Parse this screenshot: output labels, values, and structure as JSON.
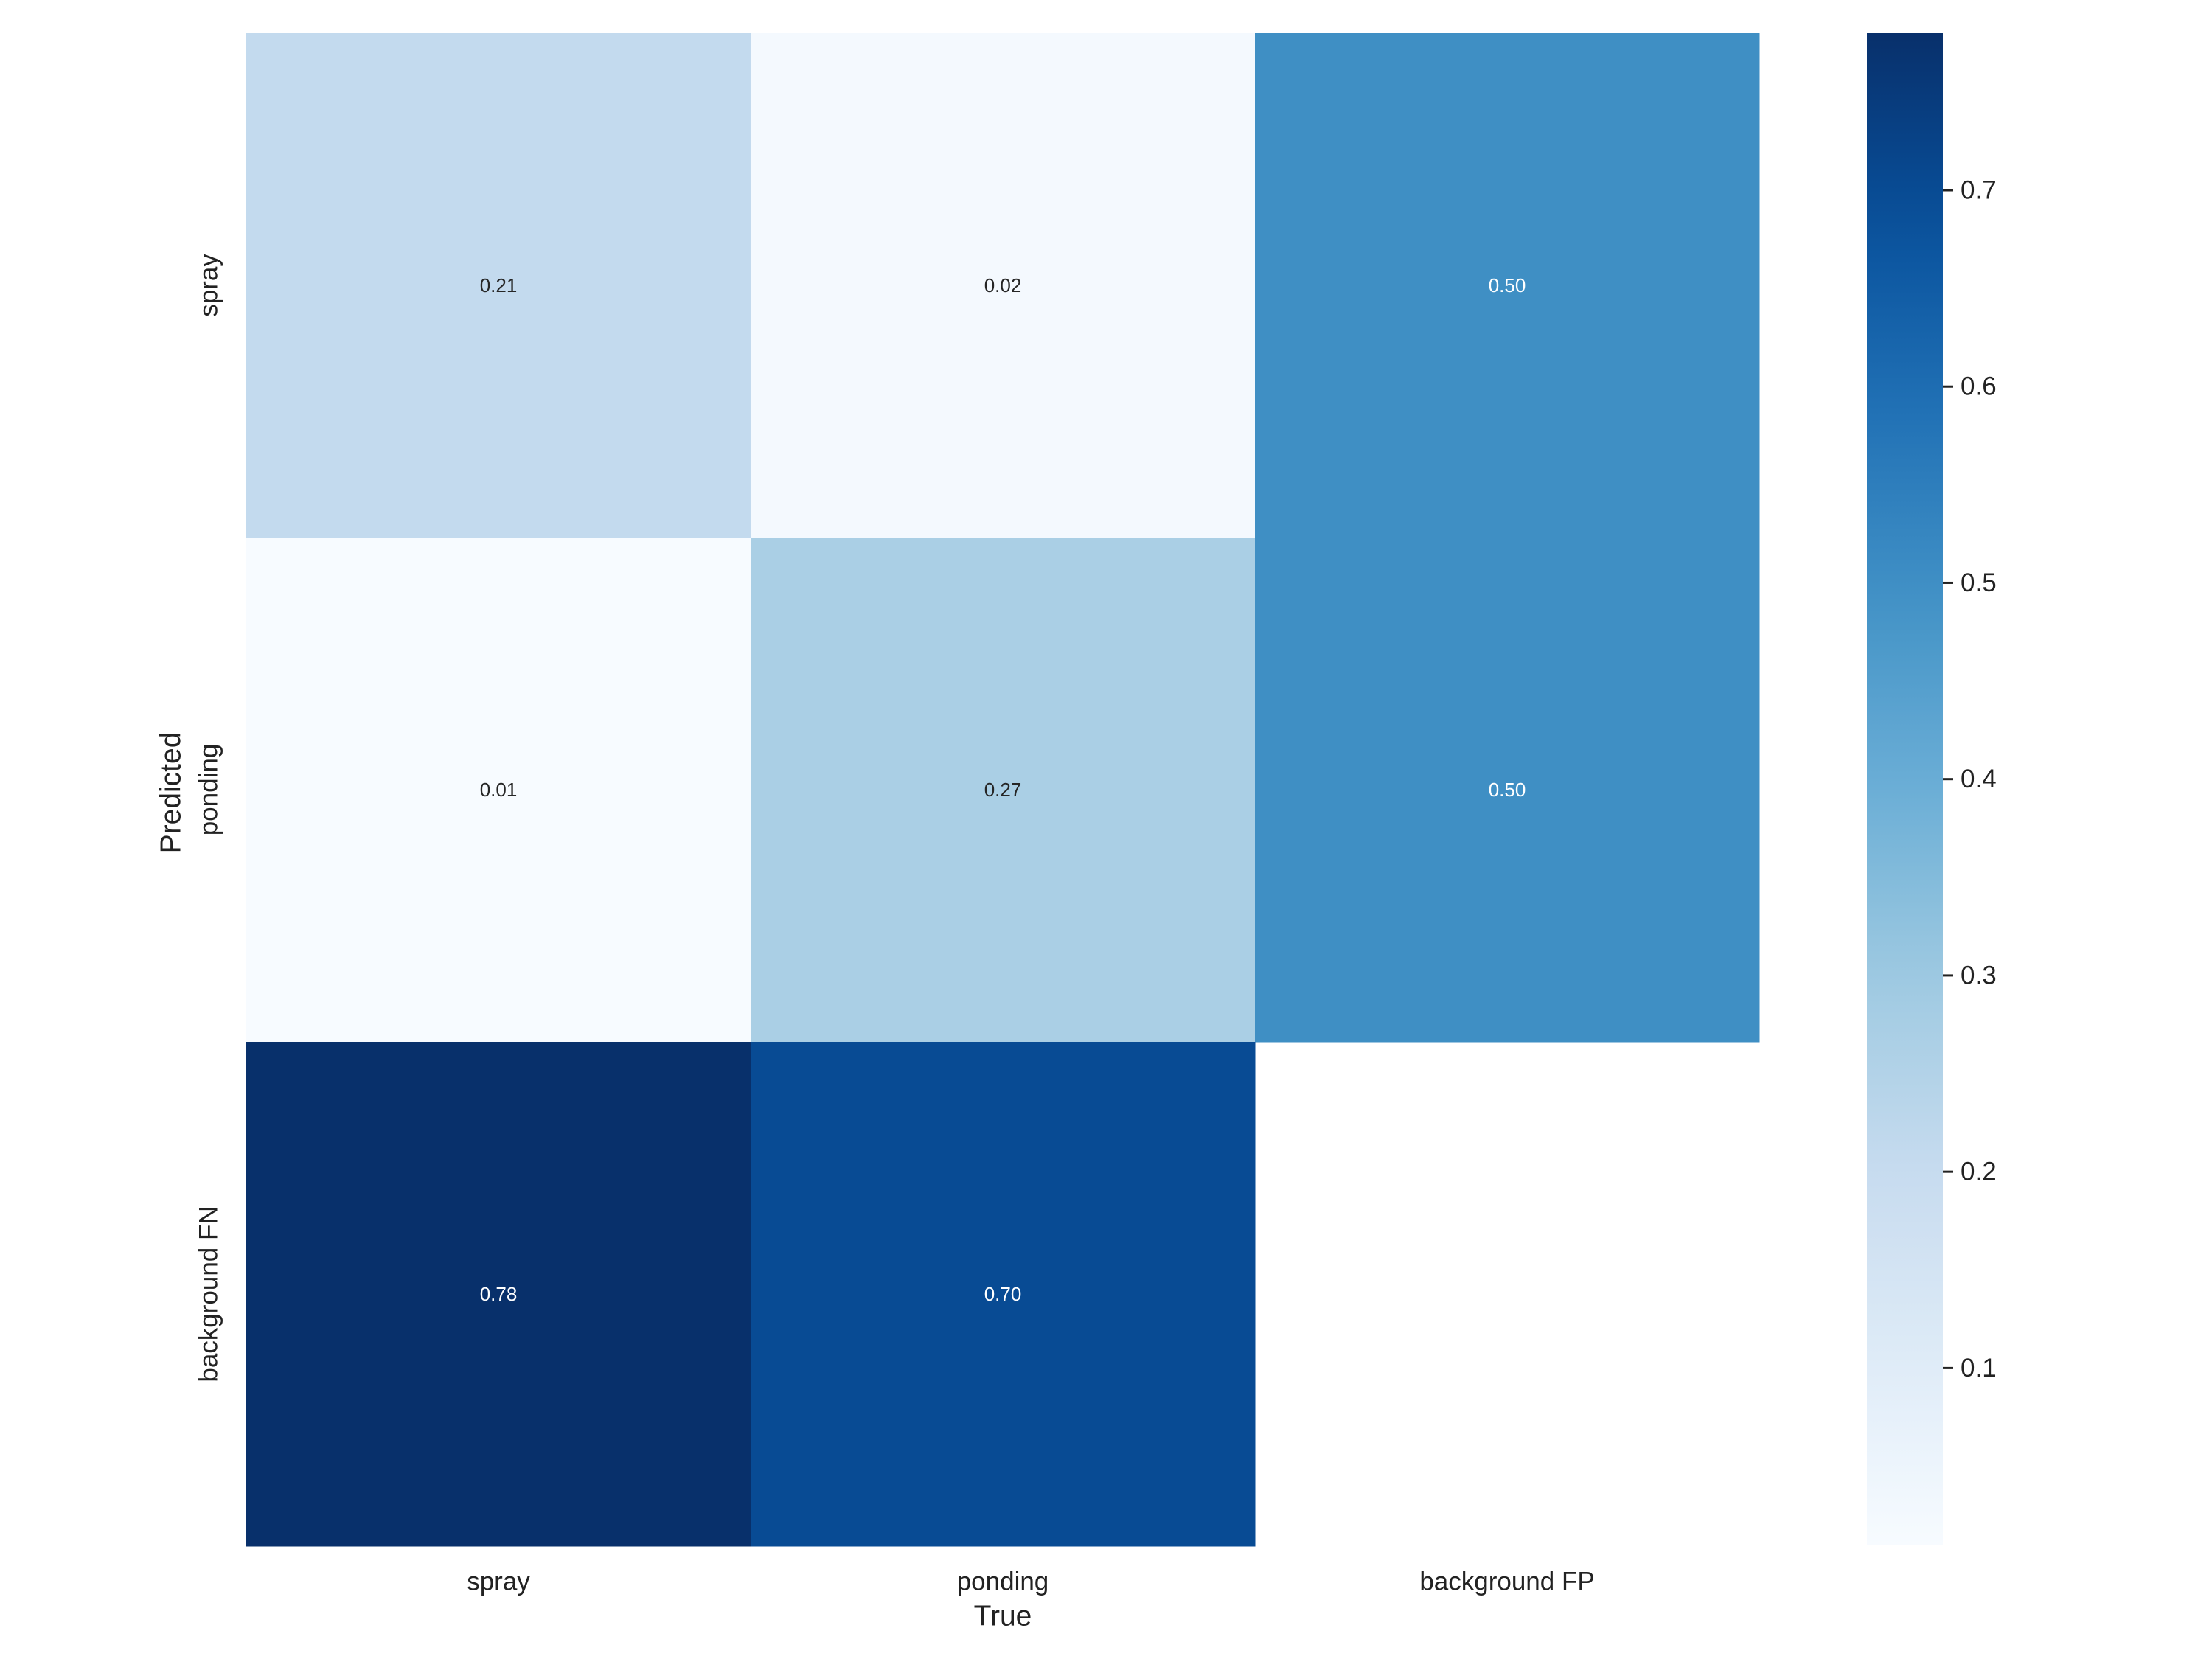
{
  "chart_data": {
    "type": "heatmap",
    "title": "",
    "xlabel": "True",
    "ylabel": "Predicted",
    "x_categories": [
      "spray",
      "ponding",
      "background FP"
    ],
    "y_categories": [
      "spray",
      "ponding",
      "background FN"
    ],
    "values": [
      [
        0.21,
        0.02,
        0.5
      ],
      [
        0.01,
        0.27,
        0.5
      ],
      [
        0.78,
        0.7,
        null
      ]
    ],
    "value_labels": [
      [
        "0.21",
        "0.02",
        "0.50"
      ],
      [
        "0.01",
        "0.27",
        "0.50"
      ],
      [
        "0.78",
        "0.70",
        ""
      ]
    ],
    "colormap": "Blues",
    "colorbar": {
      "range": [
        0.01,
        0.78
      ],
      "ticks": [
        0.1,
        0.2,
        0.3,
        0.4,
        0.5,
        0.6,
        0.7
      ],
      "tick_labels": [
        "0.1",
        "0.2",
        "0.3",
        "0.4",
        "0.5",
        "0.6",
        "0.7"
      ]
    },
    "grid": false
  }
}
